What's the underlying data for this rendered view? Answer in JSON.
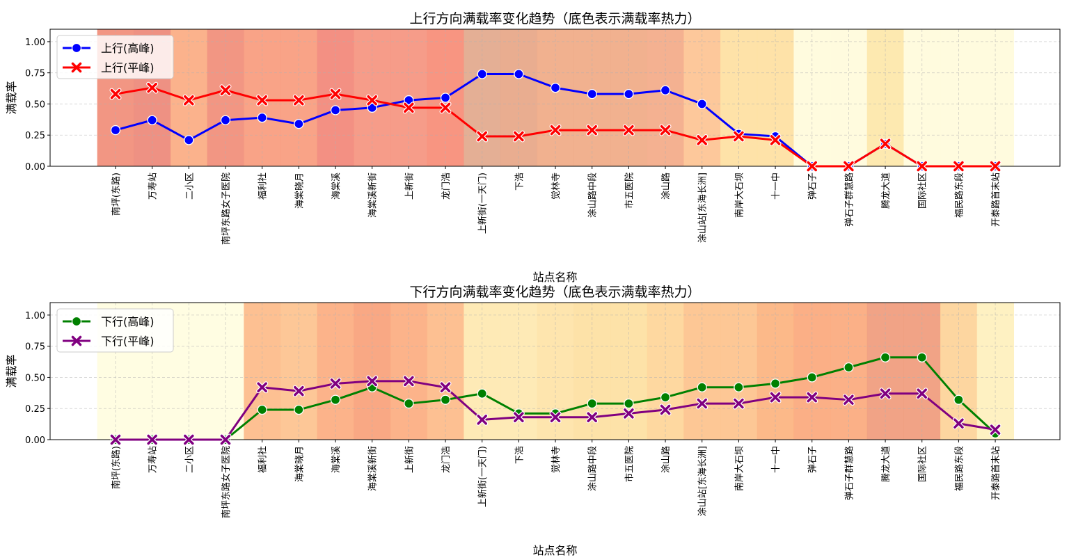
{
  "stations": [
    "南坪(东路)",
    "万寿站",
    "二小区",
    "南坪东路女子医院",
    "福利社",
    "海棠晓月",
    "海棠溪",
    "海棠溪新街",
    "上新街",
    "龙门浩",
    "上新街(一天门)",
    "下浩",
    "觉林寺",
    "涂山路中段",
    "市五医院",
    "涂山路",
    "涂山站[东海长洲]",
    "南岸大石坝",
    "十一中",
    "弹石子",
    "弹石子群慧路",
    "腾龙大道",
    "国际社区",
    "福民路东段",
    "开泰路首末站"
  ],
  "chart_data": [
    {
      "type": "line",
      "title": "上行方向满载率变化趋势（底色表示满载率热力）",
      "xlabel": "站点名称",
      "ylabel": "满载率",
      "ylim": [
        0,
        1.1
      ],
      "yticks": [
        "0.00",
        "0.25",
        "0.50",
        "0.75",
        "1.00"
      ],
      "grid": true,
      "legend_position": "top-left",
      "series": [
        {
          "name": "上行(高峰)",
          "color": "#0000ff",
          "marker": "circle",
          "values": [
            0.29,
            0.37,
            0.21,
            0.37,
            0.39,
            0.34,
            0.45,
            0.47,
            0.53,
            0.55,
            0.74,
            0.74,
            0.63,
            0.58,
            0.58,
            0.61,
            0.5,
            0.26,
            0.24,
            0.0,
            0.0,
            0.18,
            0.0,
            0.0,
            0.0
          ]
        },
        {
          "name": "上行(平峰)",
          "color": "#ff0000",
          "marker": "x",
          "values": [
            0.58,
            0.63,
            0.53,
            0.61,
            0.53,
            0.53,
            0.58,
            0.53,
            0.47,
            0.47,
            0.24,
            0.24,
            0.29,
            0.29,
            0.29,
            0.29,
            0.21,
            0.24,
            0.21,
            0.0,
            0.0,
            0.18,
            0.0,
            0.0,
            0.0
          ]
        }
      ],
      "heat_colors": [
        "#f1907c",
        "#ed8b7c",
        "#fbae86",
        "#f1907c",
        "#f99e81",
        "#f99e81",
        "#f28a7c",
        "#f69783",
        "#f69783",
        "#f88f7a",
        "#e3ab8f",
        "#e8a98a",
        "#f0ad89",
        "#f0ad89",
        "#f0ad89",
        "#f3ad8b",
        "#fdc596",
        "#fee0a3",
        "#fee0a3",
        "#fffbdc",
        "#fffbdc",
        "#fde8ac",
        "#fffbdc",
        "#fffbdc",
        "#fffbdc"
      ]
    },
    {
      "type": "line",
      "title": "下行方向满载率变化趋势（底色表示满载率热力）",
      "xlabel": "站点名称",
      "ylabel": "满载率",
      "ylim": [
        0,
        1.1
      ],
      "yticks": [
        "0.00",
        "0.25",
        "0.50",
        "0.75",
        "1.00"
      ],
      "grid": true,
      "legend_position": "top-left",
      "series": [
        {
          "name": "下行(高峰)",
          "color": "#008000",
          "marker": "circle",
          "values": [
            0.0,
            0.0,
            0.0,
            0.0,
            0.24,
            0.24,
            0.32,
            0.42,
            0.29,
            0.32,
            0.37,
            0.21,
            0.21,
            0.29,
            0.29,
            0.34,
            0.42,
            0.42,
            0.45,
            0.5,
            0.58,
            0.66,
            0.66,
            0.32,
            0.05
          ]
        },
        {
          "name": "下行(平峰)",
          "color": "#800080",
          "marker": "x",
          "values": [
            0.0,
            0.0,
            0.0,
            0.0,
            0.42,
            0.39,
            0.45,
            0.47,
            0.47,
            0.42,
            0.16,
            0.18,
            0.18,
            0.18,
            0.21,
            0.24,
            0.29,
            0.29,
            0.34,
            0.34,
            0.32,
            0.37,
            0.37,
            0.13,
            0.08
          ]
        }
      ],
      "heat_colors": [
        "#fffde0",
        "#fffde0",
        "#fffde0",
        "#fffde0",
        "#fdbd8c",
        "#fdc491",
        "#fcaf84",
        "#f9a37d",
        "#fcaf84",
        "#fdbd8c",
        "#fee9b2",
        "#fee9b2",
        "#fee4aa",
        "#fde0a3",
        "#fde0a3",
        "#fed69b",
        "#fdc48f",
        "#fdc48f",
        "#fcb583",
        "#fbab80",
        "#fbac81",
        "#f09e80",
        "#f09e80",
        "#fdd49b",
        "#fef0bf"
      ]
    }
  ]
}
